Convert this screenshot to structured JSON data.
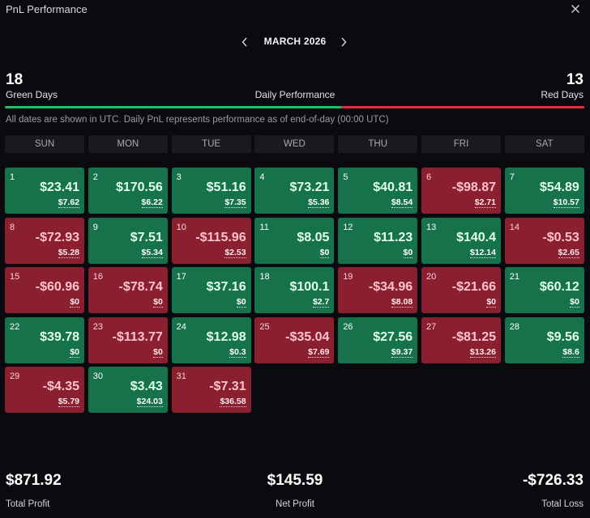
{
  "window": {
    "title": "PnL Performance"
  },
  "nav": {
    "month": "MARCH 2026"
  },
  "summary": {
    "green_days": "18",
    "green_label": "Green Days",
    "red_days": "13",
    "red_label": "Red Days",
    "performance_label": "Daily Performance",
    "green_fraction": 0.58,
    "note": "All dates are shown in UTC. Daily PnL represents performance as of end-of-day (00:00 UTC)"
  },
  "colors": {
    "green_cell": "#15724a",
    "red_cell": "#8a1f30",
    "bar_green": "#1fbf68",
    "bar_red": "#e0303f"
  },
  "weekdays": [
    "SUN",
    "MON",
    "TUE",
    "WED",
    "THU",
    "FRI",
    "SAT"
  ],
  "days": [
    {
      "day": "1",
      "pnl": "$23.41",
      "vol": "$7.62",
      "status": "green"
    },
    {
      "day": "2",
      "pnl": "$170.56",
      "vol": "$6.22",
      "status": "green"
    },
    {
      "day": "3",
      "pnl": "$51.16",
      "vol": "$7.35",
      "status": "green"
    },
    {
      "day": "4",
      "pnl": "$73.21",
      "vol": "$5.36",
      "status": "green"
    },
    {
      "day": "5",
      "pnl": "$40.81",
      "vol": "$8.54",
      "status": "green"
    },
    {
      "day": "6",
      "pnl": "-$98.87",
      "vol": "$2.71",
      "status": "red"
    },
    {
      "day": "7",
      "pnl": "$54.89",
      "vol": "$10.57",
      "status": "green"
    },
    {
      "day": "8",
      "pnl": "-$72.93",
      "vol": "$5.28",
      "status": "red"
    },
    {
      "day": "9",
      "pnl": "$7.51",
      "vol": "$5.34",
      "status": "green"
    },
    {
      "day": "10",
      "pnl": "-$115.96",
      "vol": "$2.53",
      "status": "red"
    },
    {
      "day": "11",
      "pnl": "$8.05",
      "vol": "$0",
      "status": "green"
    },
    {
      "day": "12",
      "pnl": "$11.23",
      "vol": "$0",
      "status": "green"
    },
    {
      "day": "13",
      "pnl": "$140.4",
      "vol": "$12.14",
      "status": "green"
    },
    {
      "day": "14",
      "pnl": "-$0.53",
      "vol": "$2.65",
      "status": "red"
    },
    {
      "day": "15",
      "pnl": "-$60.96",
      "vol": "$0",
      "status": "red"
    },
    {
      "day": "16",
      "pnl": "-$78.74",
      "vol": "$0",
      "status": "red"
    },
    {
      "day": "17",
      "pnl": "$37.16",
      "vol": "$0",
      "status": "green"
    },
    {
      "day": "18",
      "pnl": "$100.1",
      "vol": "$2.7",
      "status": "green"
    },
    {
      "day": "19",
      "pnl": "-$34.96",
      "vol": "$8.08",
      "status": "red"
    },
    {
      "day": "20",
      "pnl": "-$21.66",
      "vol": "$0",
      "status": "red"
    },
    {
      "day": "21",
      "pnl": "$60.12",
      "vol": "$0",
      "status": "green"
    },
    {
      "day": "22",
      "pnl": "$39.78",
      "vol": "$0",
      "status": "green"
    },
    {
      "day": "23",
      "pnl": "-$113.77",
      "vol": "$0",
      "status": "red"
    },
    {
      "day": "24",
      "pnl": "$12.98",
      "vol": "$0.3",
      "status": "green"
    },
    {
      "day": "25",
      "pnl": "-$35.04",
      "vol": "$7.69",
      "status": "red"
    },
    {
      "day": "26",
      "pnl": "$27.56",
      "vol": "$9.37",
      "status": "green"
    },
    {
      "day": "27",
      "pnl": "-$81.25",
      "vol": "$13.26",
      "status": "red"
    },
    {
      "day": "28",
      "pnl": "$9.56",
      "vol": "$8.6",
      "status": "green"
    },
    {
      "day": "29",
      "pnl": "-$4.35",
      "vol": "$5.79",
      "status": "red"
    },
    {
      "day": "30",
      "pnl": "$3.43",
      "vol": "$24.03",
      "status": "green"
    },
    {
      "day": "31",
      "pnl": "-$7.31",
      "vol": "$36.58",
      "status": "red"
    }
  ],
  "totals": {
    "total_profit": "$871.92",
    "total_profit_label": "Total Profit",
    "net_profit": "$145.59",
    "net_profit_label": "Net Profit",
    "total_loss": "-$726.33",
    "total_loss_label": "Total Loss"
  }
}
